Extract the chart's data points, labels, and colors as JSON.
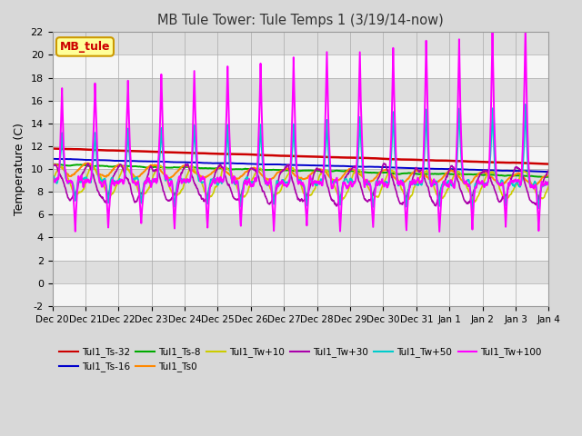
{
  "title": "MB Tule Tower: Tule Temps 1 (3/19/14-now)",
  "ylabel": "Temperature (C)",
  "ylim": [
    -2,
    22
  ],
  "yticks": [
    -2,
    0,
    2,
    4,
    6,
    8,
    10,
    12,
    14,
    16,
    18,
    20,
    22
  ],
  "x_labels": [
    "Dec 20",
    "Dec 21",
    "Dec 22",
    "Dec 23",
    "Dec 24",
    "Dec 25",
    "Dec 26",
    "Dec 27",
    "Dec 28",
    "Dec 29",
    "Dec 30",
    "Dec 31",
    "Jan 1",
    "Jan 2",
    "Jan 3",
    "Jan 4"
  ],
  "legend_label": "MB_tule",
  "legend_box_color": "#ffff99",
  "legend_box_edge": "#cc9900",
  "fig_bg": "#d8d8d8",
  "plot_bg": "#e8e8e8",
  "series": [
    {
      "name": "Tul1_Ts-32",
      "color": "#cc0000",
      "lw": 1.8
    },
    {
      "name": "Tul1_Ts-16",
      "color": "#0000cc",
      "lw": 1.4
    },
    {
      "name": "Tul1_Ts-8",
      "color": "#00aa00",
      "lw": 1.4
    },
    {
      "name": "Tul1_Ts0",
      "color": "#ff8800",
      "lw": 1.4
    },
    {
      "name": "Tul1_Tw+10",
      "color": "#cccc00",
      "lw": 1.2
    },
    {
      "name": "Tul1_Tw+30",
      "color": "#aa00aa",
      "lw": 1.2
    },
    {
      "name": "Tul1_Tw+50",
      "color": "#00cccc",
      "lw": 1.2
    },
    {
      "name": "Tul1_Tw+100",
      "color": "#ff00ff",
      "lw": 1.4
    }
  ]
}
